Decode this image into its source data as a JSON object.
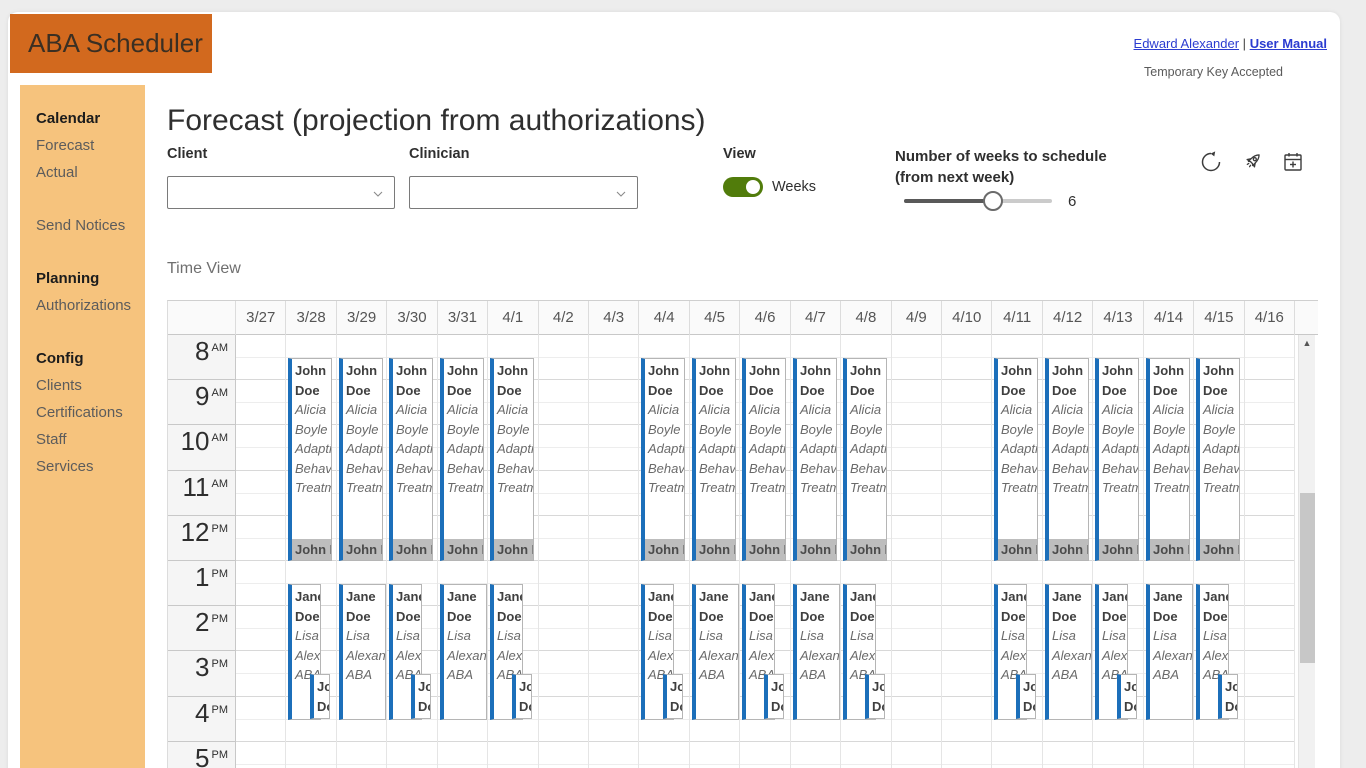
{
  "header": {
    "app_title": "ABA Scheduler",
    "user_link": "Edward Alexander",
    "divider": "|",
    "manual_link": "User Manual",
    "status_text": "Temporary Key Accepted"
  },
  "sidebar": {
    "items": [
      {
        "label": "Calendar",
        "style": "header",
        "gap": false
      },
      {
        "label": "Forecast",
        "style": "link",
        "gap": false
      },
      {
        "label": "Actual",
        "style": "link",
        "gap": false
      },
      {
        "label": "Send Notices",
        "style": "link",
        "gap": true
      },
      {
        "label": "Planning",
        "style": "header",
        "gap": true
      },
      {
        "label": "Authorizations",
        "style": "link",
        "gap": false
      },
      {
        "label": "Config",
        "style": "header",
        "gap": true
      },
      {
        "label": "Clients",
        "style": "link",
        "gap": false
      },
      {
        "label": "Certifications",
        "style": "link",
        "gap": false
      },
      {
        "label": "Staff",
        "style": "link",
        "gap": false
      },
      {
        "label": "Services",
        "style": "link",
        "gap": false
      }
    ]
  },
  "main": {
    "title": "Forecast (projection from authorizations)",
    "client_label": "Client",
    "client_value": "",
    "clinician_label": "Clinician",
    "clinician_value": "",
    "view_label": "View",
    "view_toggle_state": "on",
    "view_toggle_text": "Weeks",
    "weeks_label_line1": "Number of weeks to schedule",
    "weeks_label_line2": "(from next week)",
    "weeks_value": "6",
    "section_label": "Time View"
  },
  "toolbar": {
    "icons": [
      "refresh-icon",
      "rocket-icon",
      "add-event-icon"
    ]
  },
  "calendar": {
    "dates": [
      "3/27",
      "3/28",
      "3/29",
      "3/30",
      "3/31",
      "4/1",
      "4/2",
      "4/3",
      "4/4",
      "4/5",
      "4/6",
      "4/7",
      "4/8",
      "4/9",
      "4/10",
      "4/11",
      "4/12",
      "4/13",
      "4/14",
      "4/15",
      "4/16"
    ],
    "day_patterns": [
      "empty",
      "overlap",
      "single",
      "overlap",
      "single",
      "overlap",
      "empty",
      "empty",
      "overlap",
      "single",
      "overlap",
      "single",
      "overlap",
      "empty",
      "empty",
      "overlap",
      "single",
      "overlap",
      "single",
      "overlap",
      "empty"
    ],
    "times": [
      {
        "hour": "8",
        "meridiem": "AM"
      },
      {
        "hour": "9",
        "meridiem": "AM"
      },
      {
        "hour": "10",
        "meridiem": "AM"
      },
      {
        "hour": "11",
        "meridiem": "AM"
      },
      {
        "hour": "12",
        "meridiem": "PM"
      },
      {
        "hour": "1",
        "meridiem": "PM"
      },
      {
        "hour": "2",
        "meridiem": "PM"
      },
      {
        "hour": "3",
        "meridiem": "PM"
      },
      {
        "hour": "4",
        "meridiem": "PM"
      },
      {
        "hour": "5",
        "meridiem": "PM"
      }
    ],
    "events": {
      "morning": {
        "client": "John Doe",
        "clinician": "Alicia Boyle",
        "service": "Adaptive Behavior Treatment"
      },
      "morning_overlap_label": "John Doe",
      "afternoon": {
        "client": "Jane Doe",
        "clinician": "Lisa Alexander",
        "service": "ABA"
      },
      "late": {
        "client": "John Doe"
      }
    },
    "scrollbar": {
      "up_glyph": "▲"
    }
  },
  "colors": {
    "brand_orange": "#d2691e",
    "sidebar_bg": "#f6c37d",
    "toggle_green": "#517c0b",
    "link_blue": "#2b3cd0",
    "event_border_blue": "#1c6fba",
    "overlap_bar_gray": "#bdbdbd"
  }
}
